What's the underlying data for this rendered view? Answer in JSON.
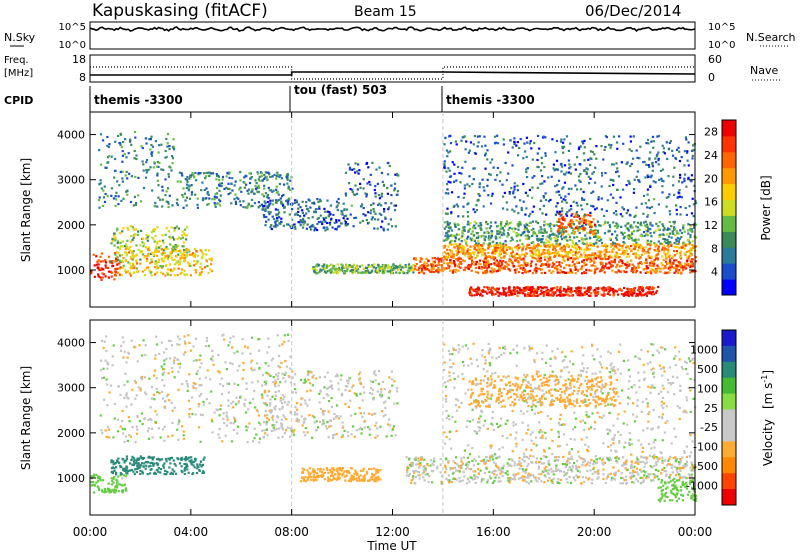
{
  "header": {
    "station": "Kapuskasing (fitACF)",
    "beam": "Beam 15",
    "date": "06/Dec/2014"
  },
  "noise_panel": {
    "left_label": "N.Sky",
    "left_ticks": [
      "10^5",
      "10^0"
    ],
    "right_ticks": [
      "10^5",
      "10^0"
    ],
    "right_label": "N.Search"
  },
  "freq_panel": {
    "left_label_1": "Freq.",
    "left_label_2": "[MHz]",
    "left_ticks": [
      "18",
      "8"
    ],
    "right_ticks": [
      "60",
      "0"
    ],
    "right_label": "Nave"
  },
  "cpid_panel": {
    "label": "CPID",
    "segments": [
      "themis -3300",
      "tou (fast) 503",
      "themis -3300"
    ]
  },
  "colors": {
    "grid": "#c8c8c8",
    "velocity_gray": "#c4c4c4"
  },
  "chart_data": [
    {
      "type": "heatmap",
      "name": "power",
      "xlabel": "Time UT",
      "ylabel": "Slant Range [km]",
      "x_ticks": [
        "00:00",
        "04:00",
        "08:00",
        "12:00",
        "16:00",
        "20:00",
        "00:00"
      ],
      "xlim_hours": [
        0,
        24
      ],
      "y_ticks": [
        1000,
        2000,
        3000,
        4000
      ],
      "ylim": [
        180,
        4500
      ],
      "colorbar": {
        "label": "Power [dB]",
        "ticks": [
          28,
          24,
          20,
          16,
          12,
          8,
          4
        ],
        "range": [
          0,
          30
        ],
        "colors": [
          "#0000ff",
          "#1a4ccc",
          "#2a7a9a",
          "#3a8a5a",
          "#66bb44",
          "#ccdd22",
          "#ffcc00",
          "#ff9900",
          "#ff6600",
          "#ff3300",
          "#ee0000"
        ]
      },
      "scatter_bands": [
        {
          "t_start": 0.0,
          "t_end": 1.2,
          "range_start": 800,
          "range_end": 1400,
          "level": 26
        },
        {
          "t_start": 0.3,
          "t_end": 3.3,
          "range_start": 2400,
          "range_end": 4100,
          "level": 8
        },
        {
          "t_start": 0.8,
          "t_end": 3.9,
          "range_start": 1200,
          "range_end": 2000,
          "level": 14
        },
        {
          "t_start": 1.2,
          "t_end": 4.8,
          "range_start": 900,
          "range_end": 1500,
          "level": 18
        },
        {
          "t_start": 3.4,
          "t_end": 8.0,
          "range_start": 2400,
          "range_end": 3200,
          "level": 8
        },
        {
          "t_start": 6.8,
          "t_end": 10.2,
          "range_start": 1900,
          "range_end": 2600,
          "level": 6
        },
        {
          "t_start": 10.0,
          "t_end": 12.2,
          "range_start": 1900,
          "range_end": 3400,
          "level": 6
        },
        {
          "t_start": 8.8,
          "t_end": 12.8,
          "range_start": 950,
          "range_end": 1150,
          "level": 12
        },
        {
          "t_start": 12.8,
          "t_end": 24.0,
          "range_start": 950,
          "range_end": 1300,
          "level": 24
        },
        {
          "t_start": 14.0,
          "t_end": 24.0,
          "range_start": 1300,
          "range_end": 1600,
          "level": 20
        },
        {
          "t_start": 14.0,
          "t_end": 24.0,
          "range_start": 1600,
          "range_end": 2100,
          "level": 10
        },
        {
          "t_start": 15.0,
          "t_end": 22.5,
          "range_start": 450,
          "range_end": 650,
          "level": 28
        },
        {
          "t_start": 18.5,
          "t_end": 20.0,
          "range_start": 1800,
          "range_end": 2300,
          "level": 24
        },
        {
          "t_start": 14.0,
          "t_end": 24.0,
          "range_start": 2200,
          "range_end": 4000,
          "level": 6
        }
      ]
    },
    {
      "type": "heatmap",
      "name": "velocity",
      "xlabel": "Time UT",
      "ylabel": "Slant Range [km]",
      "x_ticks": [
        "00:00",
        "04:00",
        "08:00",
        "12:00",
        "16:00",
        "20:00",
        "00:00"
      ],
      "xlim_hours": [
        0,
        24
      ],
      "y_ticks": [
        1000,
        2000,
        3000,
        4000
      ],
      "ylim": [
        180,
        4500
      ],
      "colorbar": {
        "label_main": "Velocity",
        "label_units": "[m s",
        "label_exponent": "-1",
        "label_close": "]",
        "ticks": [
          "1000",
          "500",
          "100",
          "25",
          "-25",
          "-100",
          "-500",
          "-1000"
        ],
        "colors": [
          "#1a1acc",
          "#2255aa",
          "#2a8a7a",
          "#44bb33",
          "#88dd44",
          "#c8c8c8",
          "#c8c8c8",
          "#ffaa33",
          "#ff8800",
          "#ff4400",
          "#ee0000"
        ]
      },
      "scatter_bands": [
        {
          "t_start": 0.0,
          "t_end": 1.4,
          "range_start": 700,
          "range_end": 1100,
          "v": 150
        },
        {
          "t_start": 0.8,
          "t_end": 4.5,
          "range_start": 1100,
          "range_end": 1500,
          "v": 400
        },
        {
          "t_start": 0.3,
          "t_end": 8.0,
          "range_start": 1800,
          "range_end": 4200,
          "v": 0
        },
        {
          "t_start": 8.3,
          "t_end": 11.5,
          "range_start": 950,
          "range_end": 1250,
          "v": -200
        },
        {
          "t_start": 6.8,
          "t_end": 12.2,
          "range_start": 1900,
          "range_end": 3400,
          "v": 0
        },
        {
          "t_start": 12.5,
          "t_end": 24.0,
          "range_start": 900,
          "range_end": 1500,
          "v": 0
        },
        {
          "t_start": 14.0,
          "t_end": 24.0,
          "range_start": 1500,
          "range_end": 4000,
          "v": 0
        },
        {
          "t_start": 15.0,
          "t_end": 21.0,
          "range_start": 2600,
          "range_end": 3300,
          "v": -150
        },
        {
          "t_start": 22.5,
          "t_end": 24.0,
          "range_start": 500,
          "range_end": 1000,
          "v": 200
        }
      ]
    }
  ]
}
